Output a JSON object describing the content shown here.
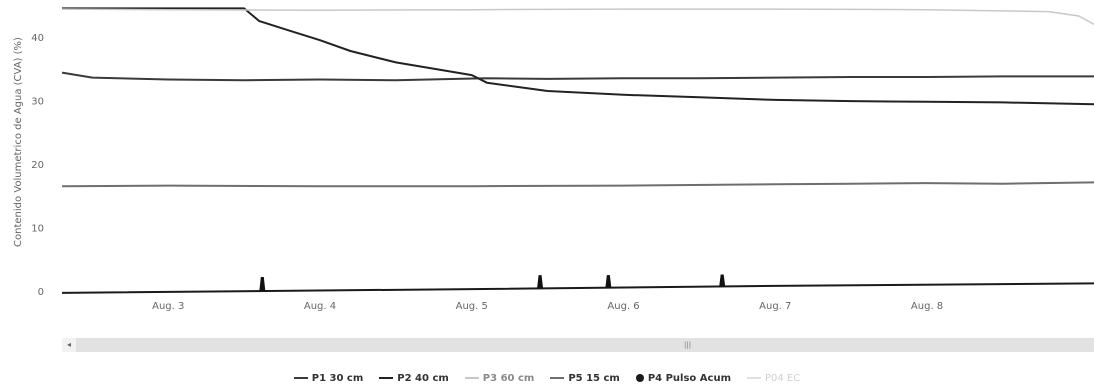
{
  "chart_data": {
    "type": "line",
    "title": "",
    "ylabel": "Contenido Volumetrico de Agua (CVA) (%)",
    "xlabel": "",
    "ylim": [
      0,
      45
    ],
    "yticks": [
      "0",
      "10",
      "20",
      "30",
      "40"
    ],
    "xlim": [
      2.3,
      9.1
    ],
    "xticks": [
      {
        "value": 3,
        "label": "Aug. 3"
      },
      {
        "value": 4,
        "label": "Aug. 4"
      },
      {
        "value": 5,
        "label": "Aug. 5"
      },
      {
        "value": 6,
        "label": "Aug. 6"
      },
      {
        "value": 7,
        "label": "Aug. 7"
      },
      {
        "value": 8,
        "label": "Aug. 8"
      }
    ],
    "grid": false,
    "legend_position": "bottom",
    "series": [
      {
        "name": "P1 30 cm",
        "color": "#3a3a3a",
        "x": [
          2.3,
          2.5,
          3.0,
          3.5,
          4.0,
          4.5,
          4.9,
          5.1,
          5.5,
          6.0,
          6.5,
          7.0,
          7.5,
          8.0,
          8.5,
          9.1
        ],
        "y": [
          34.4,
          33.6,
          33.3,
          33.2,
          33.3,
          33.2,
          33.4,
          33.5,
          33.4,
          33.5,
          33.5,
          33.6,
          33.7,
          33.7,
          33.8,
          33.8
        ]
      },
      {
        "name": "P2 40 cm",
        "color": "#222222",
        "x": [
          2.3,
          3.0,
          3.5,
          3.6,
          3.8,
          4.0,
          4.2,
          4.5,
          4.8,
          5.0,
          5.1,
          5.5,
          6.0,
          6.5,
          7.0,
          7.5,
          8.0,
          8.5,
          9.1
        ],
        "y": [
          44.5,
          44.5,
          44.5,
          42.5,
          41.0,
          39.5,
          37.8,
          36.0,
          34.8,
          34.0,
          32.8,
          31.5,
          30.9,
          30.5,
          30.1,
          29.9,
          29.8,
          29.7,
          29.4
        ]
      },
      {
        "name": "P3 60 cm",
        "color": "#c8c8c8",
        "x": [
          2.3,
          3.0,
          4.0,
          5.0,
          6.0,
          7.0,
          8.0,
          8.8,
          9.0,
          9.1
        ],
        "y": [
          44.4,
          44.3,
          44.2,
          44.3,
          44.4,
          44.4,
          44.3,
          44.0,
          43.3,
          42.0
        ]
      },
      {
        "name": "P5 15 cm",
        "color": "#6e6e6e",
        "x": [
          2.3,
          3.0,
          4.0,
          5.0,
          6.0,
          7.0,
          7.5,
          8.0,
          8.5,
          9.1
        ],
        "y": [
          16.5,
          16.6,
          16.5,
          16.5,
          16.6,
          16.8,
          16.9,
          17.0,
          16.9,
          17.1
        ]
      },
      {
        "name": "P4 Pulso Acum",
        "color": "#1a1a1a",
        "x": [
          2.3,
          5.0,
          7.0,
          9.1
        ],
        "y": [
          -0.3,
          0.3,
          0.8,
          1.2
        ]
      }
    ],
    "pulses": [
      {
        "x": 3.62,
        "y": 2.2
      },
      {
        "x": 5.45,
        "y": 2.5
      },
      {
        "x": 5.9,
        "y": 2.5
      },
      {
        "x": 6.65,
        "y": 2.6
      }
    ],
    "legend": [
      {
        "label": "P1 30 cm",
        "color": "#3a3a3a",
        "marker": "line"
      },
      {
        "label": "P2 40 cm",
        "color": "#222222",
        "marker": "line"
      },
      {
        "label": "P3 60 cm",
        "color": "#c8c8c8",
        "marker": "line"
      },
      {
        "label": "P5 15 cm",
        "color": "#6e6e6e",
        "marker": "line"
      },
      {
        "label": "P4 Pulso Acum",
        "color": "#1a1a1a",
        "marker": "dot"
      },
      {
        "label": "P04 EC",
        "color": "#e0e0e0",
        "marker": "line"
      }
    ]
  },
  "scrollbar": {
    "arrow": "◂",
    "grip": "|||"
  }
}
